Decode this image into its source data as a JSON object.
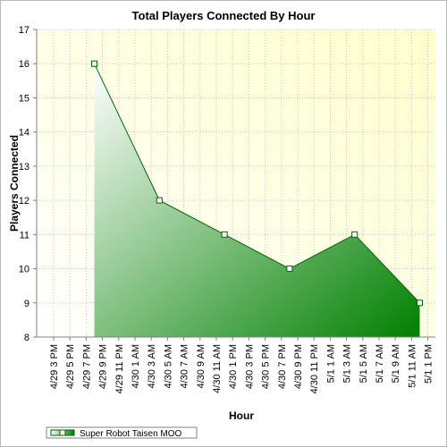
{
  "chart_data": {
    "type": "area",
    "title": "Total Players Connected By Hour",
    "xlabel": "Hour",
    "ylabel": "Players Connected",
    "ylim": [
      8,
      17
    ],
    "yticks": [
      8,
      9,
      10,
      11,
      12,
      13,
      14,
      15,
      16,
      17
    ],
    "grid": true,
    "legend_position": "bottom-left",
    "categories": [
      "4/29 3 PM",
      "4/29 5 PM",
      "4/29 7 PM",
      "4/29 9 PM",
      "4/29 11 PM",
      "4/30 1 AM",
      "4/30 3 AM",
      "4/30 5 AM",
      "4/30 7 AM",
      "4/30 9 AM",
      "4/30 11 AM",
      "4/30 1 PM",
      "4/30 3 PM",
      "4/30 5 PM",
      "4/30 7 PM",
      "4/30 9 PM",
      "4/30 11 PM",
      "5/1 1 AM",
      "5/1 3 AM",
      "5/1 5 AM",
      "5/1 7 AM",
      "5/1 9 AM",
      "5/1 11 AM",
      "5/1 1 PM"
    ],
    "series": [
      {
        "name": "Super Robot Taisen MOO",
        "x": [
          "4/29 8 PM",
          "4/30 4 AM",
          "4/30 12 PM",
          "4/30 8 PM",
          "5/1 4 AM",
          "5/1 12 PM"
        ],
        "values": [
          16,
          12,
          11,
          10,
          11,
          9
        ]
      }
    ],
    "colors": {
      "plot_bg_start": "#ffffff",
      "plot_bg_end": "#ffffcc",
      "area_light": "#ffffff",
      "area_dark": "#008000",
      "line": "#006600",
      "marker_fill": "#ffffff",
      "grid": "#c8c8c8"
    }
  }
}
